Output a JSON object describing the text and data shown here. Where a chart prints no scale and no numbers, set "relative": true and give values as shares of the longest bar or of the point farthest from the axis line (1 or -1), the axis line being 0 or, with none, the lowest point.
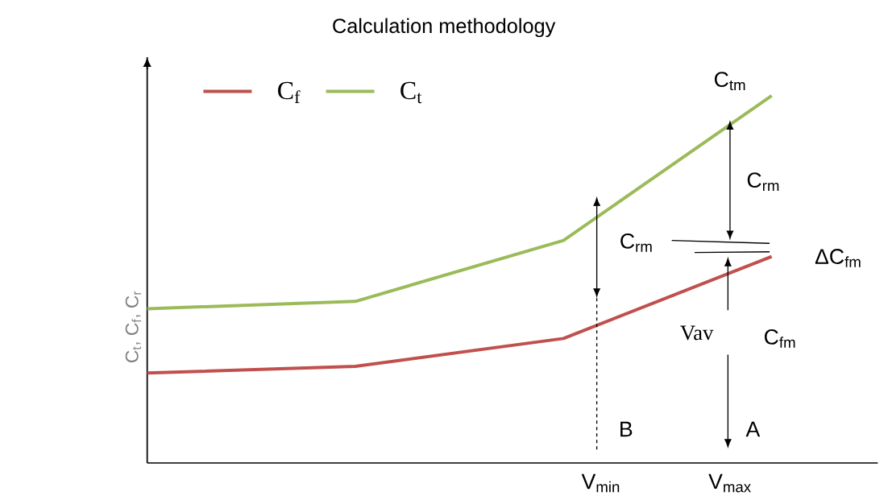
{
  "chart_data": {
    "type": "line",
    "title": "Calculation methodology",
    "ylabel": "C$_{t}$, C$_{f}$, C$_{r}$",
    "relative": true,
    "categories": [
      null,
      null,
      null,
      null
    ],
    "series": [
      {
        "name": "C$_{f}$",
        "color": "#c0504d",
        "values": [
          0.245,
          0.263,
          0.339,
          0.562
        ]
      },
      {
        "name": "C$_{t}$",
        "color": "#9bbb59",
        "values": [
          0.42,
          0.44,
          0.606,
          1
        ]
      }
    ],
    "legend": "top left",
    "marker": "none",
    "line_style": "solid",
    "annotations": [
      "C$_{tm}$",
      "C$_{rm}$",
      "C$_{rm}$",
      "ΔC$_{fm}$",
      "Vav",
      "C$_{fm}$",
      "B",
      "A",
      "V$_{min}$",
      "V$_{max}$"
    ]
  }
}
